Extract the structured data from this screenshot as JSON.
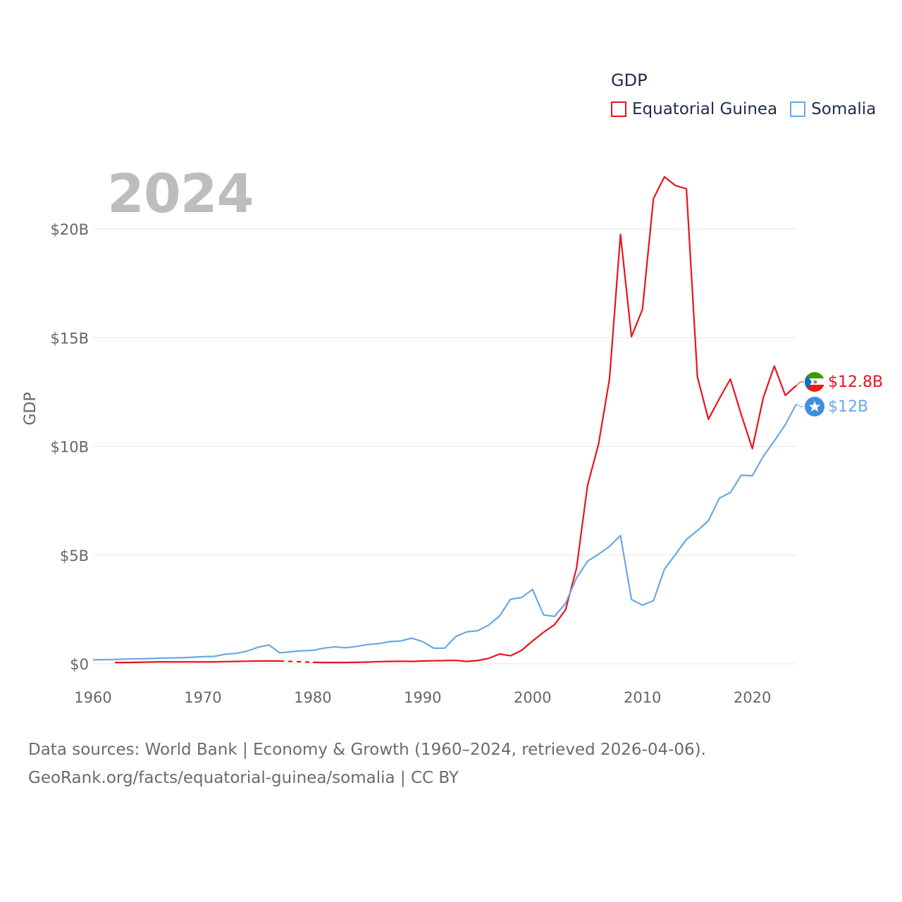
{
  "legend": {
    "title": "GDP",
    "items": [
      {
        "label": "Equatorial Guinea",
        "color": "#e8141c"
      },
      {
        "label": "Somalia",
        "color": "#6aa8e4"
      }
    ]
  },
  "year_label": "2024",
  "footer": {
    "line1": "Data sources: World Bank | Economy & Growth (1960–2024, retrieved 2026-04-06).",
    "line2": "GeoRank.org/facts/equatorial-guinea/somalia | CC BY"
  },
  "chart_data": {
    "type": "line",
    "ylabel": "GDP",
    "xlabel": "",
    "xlim": [
      1960,
      2024
    ],
    "ylim": [
      0,
      20
    ],
    "x_ticks": [
      1960,
      1970,
      1980,
      1990,
      2000,
      2010,
      2020
    ],
    "y_ticks": [
      {
        "value": 0,
        "label": "$0"
      },
      {
        "value": 5,
        "label": "$5B"
      },
      {
        "value": 10,
        "label": "$10B"
      },
      {
        "value": 15,
        "label": "$15B"
      },
      {
        "value": 20,
        "label": "$20B"
      }
    ],
    "grid": true,
    "series": [
      {
        "name": "Equatorial Guinea",
        "color": "#e8141c",
        "end_label": "$12.8B",
        "gaps": [
          [
            1977,
            1980
          ]
        ],
        "data": [
          [
            1962,
            0.06
          ],
          [
            1963,
            0.06
          ],
          [
            1964,
            0.07
          ],
          [
            1965,
            0.08
          ],
          [
            1966,
            0.09
          ],
          [
            1967,
            0.09
          ],
          [
            1968,
            0.09
          ],
          [
            1969,
            0.09
          ],
          [
            1970,
            0.09
          ],
          [
            1971,
            0.09
          ],
          [
            1972,
            0.1
          ],
          [
            1973,
            0.11
          ],
          [
            1974,
            0.12
          ],
          [
            1975,
            0.13
          ],
          [
            1976,
            0.13
          ],
          [
            1977,
            0.13
          ],
          [
            1978,
            0.11
          ],
          [
            1979,
            0.09
          ],
          [
            1980,
            0.07
          ],
          [
            1981,
            0.06
          ],
          [
            1982,
            0.06
          ],
          [
            1983,
            0.06
          ],
          [
            1984,
            0.07
          ],
          [
            1985,
            0.08
          ],
          [
            1986,
            0.1
          ],
          [
            1987,
            0.11
          ],
          [
            1988,
            0.12
          ],
          [
            1989,
            0.11
          ],
          [
            1990,
            0.13
          ],
          [
            1991,
            0.14
          ],
          [
            1992,
            0.15
          ],
          [
            1993,
            0.16
          ],
          [
            1994,
            0.11
          ],
          [
            1995,
            0.15
          ],
          [
            1996,
            0.25
          ],
          [
            1997,
            0.45
          ],
          [
            1998,
            0.37
          ],
          [
            1999,
            0.62
          ],
          [
            2000,
            1.05
          ],
          [
            2001,
            1.45
          ],
          [
            2002,
            1.8
          ],
          [
            2003,
            2.48
          ],
          [
            2004,
            4.4
          ],
          [
            2005,
            8.2
          ],
          [
            2006,
            10.1
          ],
          [
            2007,
            13.1
          ],
          [
            2008,
            19.75
          ],
          [
            2009,
            15.05
          ],
          [
            2010,
            16.3
          ],
          [
            2011,
            21.4
          ],
          [
            2012,
            22.4
          ],
          [
            2013,
            22.0
          ],
          [
            2014,
            21.85
          ],
          [
            2015,
            13.2
          ],
          [
            2016,
            11.25
          ],
          [
            2017,
            12.2
          ],
          [
            2018,
            13.1
          ],
          [
            2019,
            11.45
          ],
          [
            2020,
            9.9
          ],
          [
            2021,
            12.25
          ],
          [
            2022,
            13.7
          ],
          [
            2023,
            12.35
          ],
          [
            2024,
            12.8
          ]
        ]
      },
      {
        "name": "Somalia",
        "color": "#6aa8e4",
        "end_label": "$12B",
        "gaps": [],
        "data": [
          [
            1960,
            0.18
          ],
          [
            1961,
            0.19
          ],
          [
            1962,
            0.2
          ],
          [
            1963,
            0.22
          ],
          [
            1964,
            0.23
          ],
          [
            1965,
            0.24
          ],
          [
            1966,
            0.26
          ],
          [
            1967,
            0.27
          ],
          [
            1968,
            0.28
          ],
          [
            1969,
            0.3
          ],
          [
            1970,
            0.33
          ],
          [
            1971,
            0.34
          ],
          [
            1972,
            0.44
          ],
          [
            1973,
            0.48
          ],
          [
            1974,
            0.58
          ],
          [
            1975,
            0.76
          ],
          [
            1976,
            0.87
          ],
          [
            1977,
            0.5
          ],
          [
            1978,
            0.56
          ],
          [
            1979,
            0.6
          ],
          [
            1980,
            0.62
          ],
          [
            1981,
            0.72
          ],
          [
            1982,
            0.78
          ],
          [
            1983,
            0.74
          ],
          [
            1984,
            0.8
          ],
          [
            1985,
            0.89
          ],
          [
            1986,
            0.93
          ],
          [
            1987,
            1.02
          ],
          [
            1988,
            1.05
          ],
          [
            1989,
            1.18
          ],
          [
            1990,
            1.02
          ],
          [
            1991,
            0.72
          ],
          [
            1992,
            0.72
          ],
          [
            1993,
            1.25
          ],
          [
            1994,
            1.47
          ],
          [
            1995,
            1.52
          ],
          [
            1996,
            1.78
          ],
          [
            1997,
            2.2
          ],
          [
            1998,
            2.97
          ],
          [
            1999,
            3.05
          ],
          [
            2000,
            3.42
          ],
          [
            2001,
            2.25
          ],
          [
            2002,
            2.18
          ],
          [
            2003,
            2.78
          ],
          [
            2004,
            3.95
          ],
          [
            2005,
            4.72
          ],
          [
            2006,
            5.04
          ],
          [
            2007,
            5.4
          ],
          [
            2008,
            5.9
          ],
          [
            2009,
            2.96
          ],
          [
            2010,
            2.7
          ],
          [
            2011,
            2.9
          ],
          [
            2012,
            4.35
          ],
          [
            2013,
            5.03
          ],
          [
            2014,
            5.72
          ],
          [
            2015,
            6.13
          ],
          [
            2016,
            6.58
          ],
          [
            2017,
            7.62
          ],
          [
            2018,
            7.88
          ],
          [
            2019,
            8.68
          ],
          [
            2020,
            8.65
          ],
          [
            2021,
            9.55
          ],
          [
            2022,
            10.25
          ],
          [
            2023,
            11.0
          ],
          [
            2024,
            11.95
          ]
        ]
      }
    ]
  }
}
